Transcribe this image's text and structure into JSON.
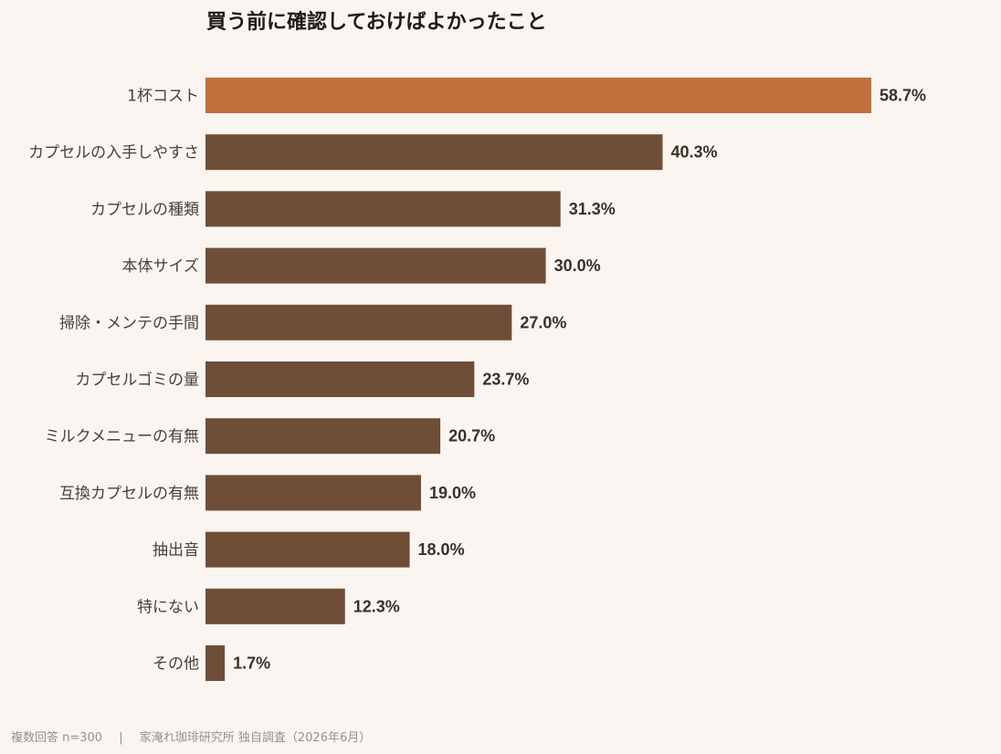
{
  "chart_data": {
    "type": "bar",
    "orientation": "horizontal",
    "title": "買う前に確認しておけばよかったこと",
    "categories": [
      "1杯コスト",
      "カプセルの入手しやすさ",
      "カプセルの種類",
      "本体サイズ",
      "掃除・メンテの手間",
      "カプセルゴミの量",
      "ミルクメニューの有無",
      "互換カプセルの有無",
      "抽出音",
      "特にない",
      "その他"
    ],
    "values": [
      58.7,
      40.3,
      31.3,
      30.0,
      27.0,
      23.7,
      20.7,
      19.0,
      18.0,
      12.3,
      1.7
    ],
    "value_labels": [
      "58.7%",
      "40.3%",
      "31.3%",
      "30.0%",
      "27.0%",
      "23.7%",
      "20.7%",
      "19.0%",
      "18.0%",
      "12.3%",
      "1.7%"
    ],
    "unit": "%",
    "xlim": [
      0,
      70
    ],
    "grid": false,
    "highlight_index": 0,
    "colors": {
      "highlight": "#c0713d",
      "default": "#6e4e37",
      "background": "#faf5f0"
    }
  },
  "footer": {
    "note": "複数回答 n=300",
    "separator": "|",
    "source": "家淹れ珈琲研究所 独自調査（2026年6月）"
  }
}
